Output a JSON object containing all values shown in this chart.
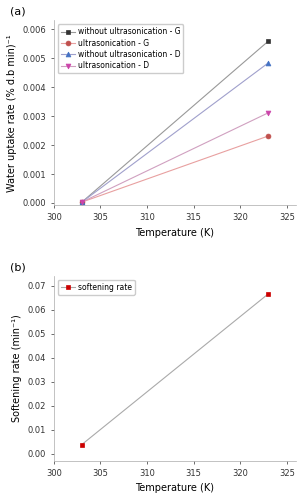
{
  "panel_a": {
    "label": "(a)",
    "x": [
      303,
      323
    ],
    "series": [
      {
        "label": "without ultrasonication - G",
        "y": [
          3e-05,
          0.00558
        ],
        "linecolor": "#999999",
        "marker": "s",
        "markercolor": "#333333",
        "markerface": "#333333",
        "linestyle": "-"
      },
      {
        "label": "ultrasonication - G",
        "y": [
          3e-05,
          0.00231
        ],
        "linecolor": "#e8a0a0",
        "marker": "o",
        "markercolor": "#c0504d",
        "markerface": "#c0504d",
        "linestyle": "-"
      },
      {
        "label": "without ultrasonication - D",
        "y": [
          3e-05,
          0.00483
        ],
        "linecolor": "#a0a0cc",
        "marker": "^",
        "markercolor": "#4472c4",
        "markerface": "#4472c4",
        "linestyle": "-"
      },
      {
        "label": "ultrasonication - D",
        "y": [
          3e-05,
          0.00311
        ],
        "linecolor": "#d0a0c0",
        "marker": "v",
        "markercolor": "#cc44aa",
        "markerface": "#cc44aa",
        "linestyle": "-"
      }
    ],
    "xlabel": "Temperature (K)",
    "ylabel": "Water uptake rate (% d.b min)⁻¹",
    "xlim": [
      300,
      326
    ],
    "ylim": [
      -8e-05,
      0.0063
    ],
    "yticks": [
      0.0,
      0.001,
      0.002,
      0.003,
      0.004,
      0.005,
      0.006
    ],
    "xticks": [
      300,
      305,
      310,
      315,
      320,
      325
    ]
  },
  "panel_b": {
    "label": "(b)",
    "x": [
      303,
      323
    ],
    "series": [
      {
        "label": "softening rate",
        "y": [
          0.0038,
          0.0665
        ],
        "linecolor": "#aaaaaa",
        "marker": "s",
        "markercolor": "#cc0000",
        "markerface": "#cc0000",
        "linestyle": "-"
      }
    ],
    "xlabel": "Temperature (K)",
    "ylabel": "Softening rate (min⁻¹)",
    "xlim": [
      300,
      326
    ],
    "ylim": [
      -0.003,
      0.074
    ],
    "yticks": [
      0.0,
      0.01,
      0.02,
      0.03,
      0.04,
      0.05,
      0.06,
      0.07
    ],
    "xticks": [
      300,
      305,
      310,
      315,
      320,
      325
    ]
  },
  "tick_font_size": 6,
  "label_font_size": 7,
  "legend_font_size": 5.5,
  "panel_label_font_size": 8,
  "line_width": 0.8,
  "marker_size": 3.5
}
